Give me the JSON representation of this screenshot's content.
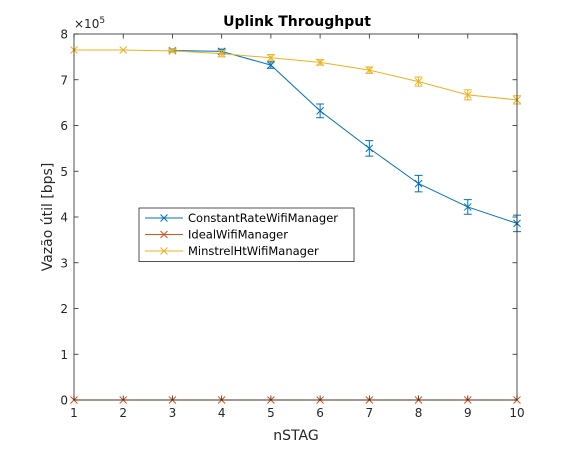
{
  "chart_data": {
    "type": "line",
    "title": "Uplink Throughput",
    "xlabel": "nSTAG",
    "ylabel": "Vazão útil [bps]",
    "y_exponent": "×10",
    "y_exponent_power": "5",
    "y_multiplier": 100000,
    "x": [
      1,
      2,
      3,
      4,
      5,
      6,
      7,
      8,
      9,
      10
    ],
    "xlim": [
      1,
      10
    ],
    "ylim": [
      0,
      8
    ],
    "x_ticks": [
      "1",
      "2",
      "3",
      "4",
      "5",
      "6",
      "7",
      "8",
      "9",
      "10"
    ],
    "y_ticks": [
      "0",
      "1",
      "2",
      "3",
      "4",
      "5",
      "6",
      "7",
      "8"
    ],
    "grid": false,
    "legend_position": "center-left",
    "series": [
      {
        "name": "ConstantRateWifiManager",
        "color": "#0072BD",
        "marker": "x",
        "x": [
          3,
          4,
          5,
          6,
          7,
          8,
          9,
          10
        ],
        "values": [
          7.64,
          7.62,
          7.32,
          6.32,
          5.5,
          4.73,
          4.22,
          3.86
        ],
        "errors": [
          0.03,
          0.05,
          0.07,
          0.15,
          0.17,
          0.18,
          0.16,
          0.18
        ]
      },
      {
        "name": "IdealWifiManager",
        "color": "#D95319",
        "marker": "x",
        "x": [
          1,
          2,
          3,
          4,
          5,
          6,
          7,
          8,
          9,
          10
        ],
        "values": [
          0,
          0,
          0,
          0,
          0,
          0,
          0,
          0,
          0,
          0
        ],
        "errors": [
          0,
          0,
          0,
          0,
          0,
          0,
          0,
          0,
          0,
          0
        ]
      },
      {
        "name": "MinstrelHtWifiManager",
        "color": "#EDB120",
        "marker": "x",
        "x": [
          1,
          2,
          3,
          4,
          5,
          6,
          7,
          8,
          9,
          10
        ],
        "values": [
          7.65,
          7.65,
          7.63,
          7.57,
          7.48,
          7.38,
          7.21,
          6.96,
          6.67,
          6.56
        ],
        "errors": [
          0,
          0,
          0.03,
          0.07,
          0.07,
          0.06,
          0.07,
          0.1,
          0.11,
          0.09
        ]
      }
    ]
  }
}
